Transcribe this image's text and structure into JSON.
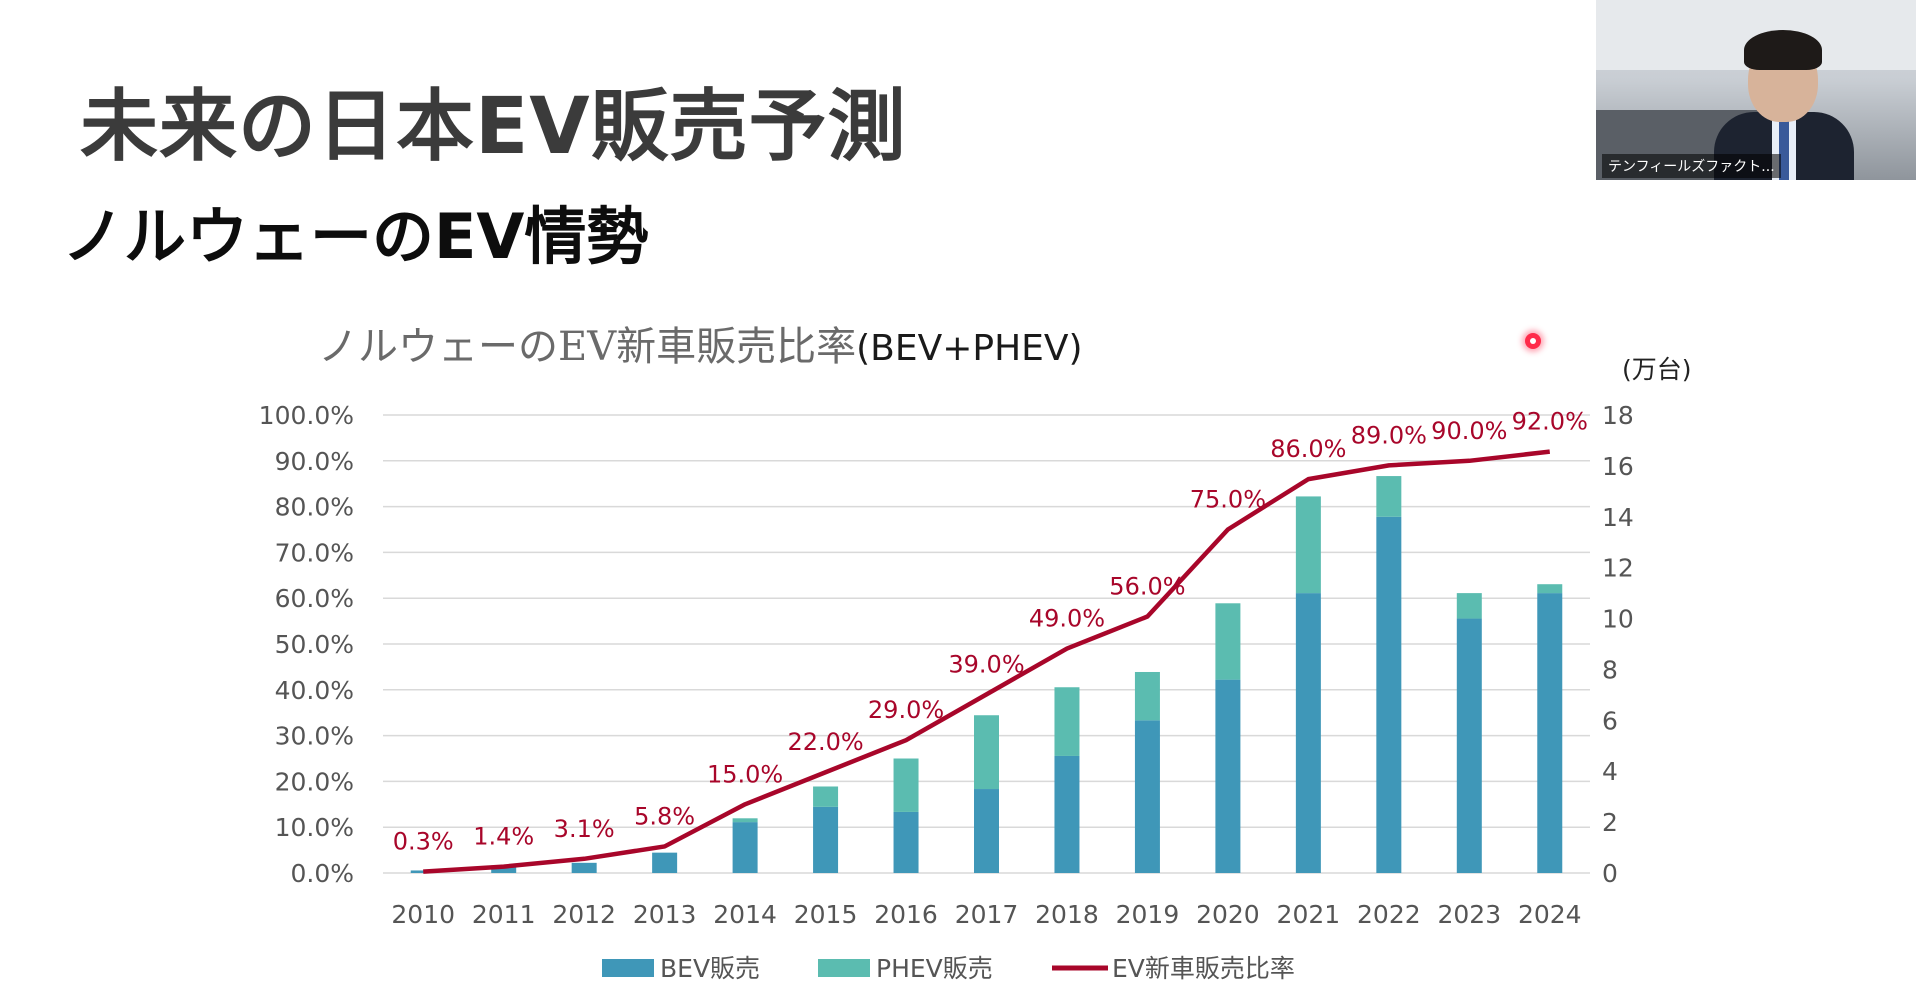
{
  "slide": {
    "title": "未来の日本EV販売予測",
    "subtitle": "ノルウェーのEV情勢"
  },
  "video": {
    "participant_name": "テンフィールズファクト..."
  },
  "colors": {
    "bev": "#3f97b8",
    "phev": "#5bbcb0",
    "line": "#a8062a",
    "grid": "#d9d9d9",
    "axis_text": "#555555"
  },
  "chart_data": {
    "type": "bar",
    "title_part1": "ノルウェーのEV新車販売比率",
    "title_part2": "(BEV+PHEV)",
    "categories": [
      "2010",
      "2011",
      "2012",
      "2013",
      "2014",
      "2015",
      "2016",
      "2017",
      "2018",
      "2019",
      "2020",
      "2021",
      "2022",
      "2023",
      "2024"
    ],
    "series": [
      {
        "name": "BEV販売",
        "axis": "right",
        "kind": "stacked-bar",
        "values": [
          0.1,
          0.3,
          0.4,
          0.8,
          2.0,
          2.6,
          2.4,
          3.3,
          4.6,
          6.0,
          7.6,
          11.0,
          14.0,
          10.0,
          11.0
        ]
      },
      {
        "name": "PHEV販売",
        "axis": "right",
        "kind": "stacked-bar",
        "values": [
          0.0,
          0.0,
          0.0,
          0.0,
          0.15,
          0.8,
          2.1,
          2.9,
          2.7,
          1.9,
          3.0,
          3.8,
          1.6,
          1.0,
          0.35
        ]
      },
      {
        "name": "EV新車販売比率",
        "axis": "left",
        "kind": "line",
        "values": [
          0.3,
          1.4,
          3.1,
          5.8,
          15.0,
          22.0,
          29.0,
          39.0,
          49.0,
          56.0,
          75.0,
          86.0,
          89.0,
          90.0,
          92.0
        ],
        "labels": [
          "0.3%",
          "1.4%",
          "3.1%",
          "5.8%",
          "15.0%",
          "22.0%",
          "29.0%",
          "39.0%",
          "49.0%",
          "56.0%",
          "75.0%",
          "86.0%",
          "89.0%",
          "90.0%",
          "92.0%"
        ]
      }
    ],
    "left_axis": {
      "ylim": [
        0,
        100
      ],
      "ticks": [
        "0.0%",
        "10.0%",
        "20.0%",
        "30.0%",
        "40.0%",
        "50.0%",
        "60.0%",
        "70.0%",
        "80.0%",
        "90.0%",
        "100.0%"
      ]
    },
    "right_axis": {
      "unit_label": "(万台)",
      "ylim": [
        0,
        18
      ],
      "ticks": [
        "0",
        "2",
        "4",
        "6",
        "8",
        "10",
        "12",
        "14",
        "16",
        "18"
      ]
    },
    "legend_position": "bottom",
    "grid": true
  }
}
